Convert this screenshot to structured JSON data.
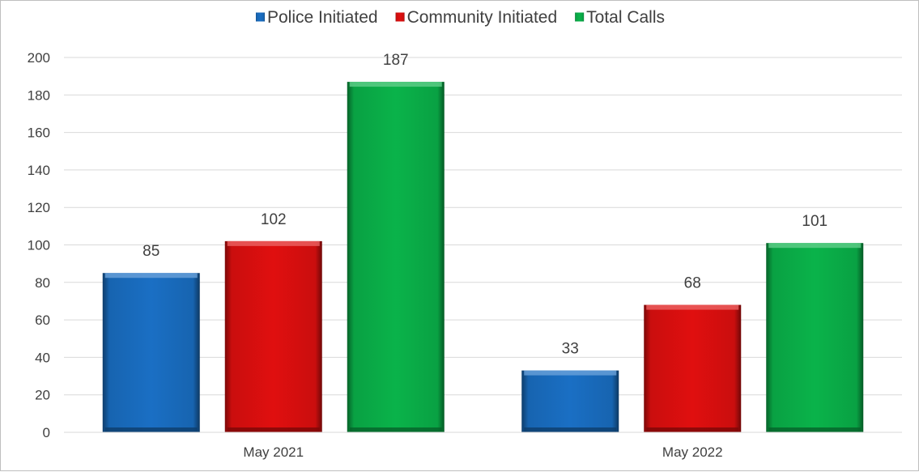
{
  "chart_data": {
    "type": "bar",
    "title": "",
    "xlabel": "",
    "ylabel": "",
    "categories": [
      "May 2021",
      "May 2022"
    ],
    "series": [
      {
        "name": "Police Initiated",
        "values": [
          85,
          33
        ],
        "color": "#1a6fc4"
      },
      {
        "name": "Community Initiated",
        "values": [
          102,
          68
        ],
        "color": "#e00f0f"
      },
      {
        "name": "Total Calls",
        "values": [
          187,
          101
        ],
        "color": "#0ab34a"
      }
    ],
    "ylim": [
      0,
      200
    ],
    "yticks": [
      0,
      20,
      40,
      60,
      80,
      100,
      120,
      140,
      160,
      180,
      200
    ],
    "grid": true,
    "legend_position": "top-center",
    "data_labels": true
  }
}
